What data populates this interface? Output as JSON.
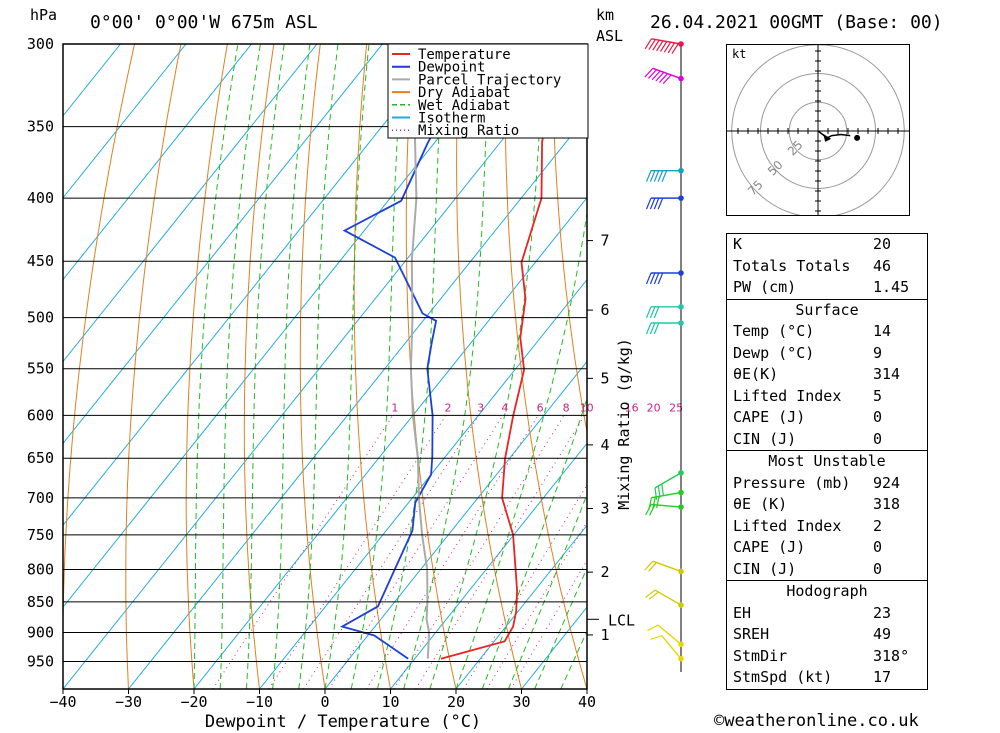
{
  "header": {
    "hpa_label": "hPa",
    "location": "0°00' 0°00'W 675m ASL",
    "km_label": "km",
    "asl_label": "ASL",
    "datetime": "26.04.2021 00GMT (Base: 00)"
  },
  "chart_data": {
    "type": "line",
    "title": "0°00' 0°00'W 675m ASL",
    "xlabel": "Dewpoint / Temperature (°C)",
    "ylabel": "hPa",
    "right_axis_label": "Mixing Ratio (g/kg)",
    "xlim": [
      -40,
      40
    ],
    "ylim": [
      300,
      1000
    ],
    "x_ticks": [
      -40,
      -30,
      -20,
      -10,
      0,
      10,
      20,
      30,
      40
    ],
    "pressure_levels": [
      300,
      350,
      400,
      450,
      500,
      550,
      600,
      650,
      700,
      750,
      800,
      850,
      900,
      950
    ],
    "km_ticks": [
      {
        "label": "1",
        "p": 904
      },
      {
        "label": "2",
        "p": 804
      },
      {
        "label": "3",
        "p": 714
      },
      {
        "label": "4",
        "p": 634
      },
      {
        "label": "5",
        "p": 560
      },
      {
        "label": "6",
        "p": 493
      },
      {
        "label": "7",
        "p": 433
      }
    ],
    "lcl": {
      "label": "LCL",
      "p": 878
    },
    "mixing_ratio_labels": [
      "1",
      "2",
      "3",
      "4",
      "6",
      "8",
      "10",
      "16",
      "20",
      "25"
    ],
    "mixing_ratio_values": [
      1,
      2,
      3,
      4,
      6,
      8,
      10,
      16,
      20,
      25
    ],
    "legend": {
      "position": "top-right",
      "items": [
        {
          "name": "Temperature",
          "color": "#ee2222",
          "style": "solid"
        },
        {
          "name": "Dewpoint",
          "color": "#1c3fd6",
          "style": "solid"
        },
        {
          "name": "Parcel Trajectory",
          "color": "#aaaaaa",
          "style": "solid"
        },
        {
          "name": "Dry Adiabat",
          "color": "#e08020",
          "style": "solid"
        },
        {
          "name": "Wet Adiabat",
          "color": "#22bb22",
          "style": "dashed"
        },
        {
          "name": "Isotherm",
          "color": "#22aadd",
          "style": "solid"
        },
        {
          "name": "Mixing Ratio",
          "color": "#cc2288",
          "style": "dotted"
        }
      ]
    },
    "series": [
      {
        "name": "Temperature",
        "points": [
          [
            14,
            945
          ],
          [
            21.6,
            915
          ],
          [
            21.1,
            890
          ],
          [
            19.7,
            865
          ],
          [
            17.3,
            832
          ],
          [
            9.9,
            750
          ],
          [
            3.7,
            700
          ],
          [
            -0.6,
            651
          ],
          [
            -4.6,
            601
          ],
          [
            -8.6,
            551
          ],
          [
            -13.1,
            519
          ],
          [
            -17,
            483
          ],
          [
            -22.1,
            451
          ],
          [
            -26.9,
            400
          ],
          [
            -33.7,
            360
          ],
          [
            -43,
            300
          ]
        ]
      },
      {
        "name": "Dewpoint",
        "points": [
          [
            9,
            945
          ],
          [
            1,
            905
          ],
          [
            -5,
            890
          ],
          [
            -2,
            857
          ],
          [
            -6,
            744
          ],
          [
            -9,
            706
          ],
          [
            -10,
            670
          ],
          [
            -12,
            648
          ],
          [
            -17,
            600
          ],
          [
            -23.5,
            550
          ],
          [
            -26,
            524
          ],
          [
            -28,
            503
          ],
          [
            -31,
            496
          ],
          [
            -42,
            447
          ],
          [
            -53,
            425
          ],
          [
            -48,
            402
          ],
          [
            -51,
            361
          ],
          [
            -55,
            300
          ]
        ]
      },
      {
        "name": "Parcel Trajectory",
        "points": [
          [
            12,
            945
          ],
          [
            9,
            900
          ],
          [
            7,
            878
          ],
          [
            5,
            850
          ],
          [
            1,
            800
          ],
          [
            -4,
            750
          ],
          [
            -9,
            700
          ],
          [
            -14,
            650
          ],
          [
            -20,
            600
          ],
          [
            -26,
            550
          ],
          [
            -32,
            500
          ],
          [
            -39,
            450
          ],
          [
            -46,
            400
          ],
          [
            -55,
            350
          ],
          [
            -65,
            300
          ]
        ]
      }
    ],
    "wind_barbs": [
      {
        "p": 300,
        "color": "#e8194a",
        "dir": 280,
        "kt": 80
      },
      {
        "p": 320,
        "color": "#dd00dd",
        "dir": 290,
        "kt": 60
      },
      {
        "p": 380,
        "color": "#16a0c0",
        "dir": 270,
        "kt": 45
      },
      {
        "p": 400,
        "color": "#1c3fd6",
        "dir": 270,
        "kt": 40
      },
      {
        "p": 460,
        "color": "#1c3fd6",
        "dir": 270,
        "kt": 35
      },
      {
        "p": 490,
        "color": "#22c5a8",
        "dir": 270,
        "kt": 30
      },
      {
        "p": 505,
        "color": "#22c5a8",
        "dir": 270,
        "kt": 25
      },
      {
        "p": 668,
        "color": "#22cc55",
        "dir": 240,
        "kt": 25
      },
      {
        "p": 693,
        "color": "#22cc22",
        "dir": 260,
        "kt": 25
      },
      {
        "p": 712,
        "color": "#22cc22",
        "dir": 275,
        "kt": 20
      },
      {
        "p": 803,
        "color": "#cccc00",
        "dir": 290,
        "kt": 15
      },
      {
        "p": 855,
        "color": "#cccc00",
        "dir": 300,
        "kt": 15
      },
      {
        "p": 920,
        "color": "#e8d800",
        "dir": 310,
        "kt": 10
      },
      {
        "p": 945,
        "color": "#e8d800",
        "dir": 320,
        "kt": 10
      }
    ],
    "hodograph": {
      "unit_label": "kt",
      "ring_labels": [
        "25",
        "50",
        "75"
      ],
      "ring_values": [
        25,
        50,
        75
      ],
      "points": [
        [
          0,
          0
        ],
        [
          8,
          -6
        ],
        [
          12,
          -4
        ],
        [
          20,
          -3
        ],
        [
          28,
          -4
        ]
      ],
      "storm_motion": [
        34,
        -6
      ]
    }
  },
  "indices": {
    "general": [
      {
        "label": "K",
        "value": "20"
      },
      {
        "label": "Totals Totals",
        "value": "46"
      },
      {
        "label": "PW (cm)",
        "value": "1.45"
      }
    ],
    "surface": {
      "title": "Surface",
      "rows": [
        {
          "label": "Temp (°C)",
          "value": "14"
        },
        {
          "label": "Dewp (°C)",
          "value": "9"
        },
        {
          "label": "θE(K)",
          "value": "314"
        },
        {
          "label": "Lifted Index",
          "value": "5"
        },
        {
          "label": "CAPE (J)",
          "value": "0"
        },
        {
          "label": "CIN (J)",
          "value": "0"
        }
      ]
    },
    "most_unstable": {
      "title": "Most Unstable",
      "rows": [
        {
          "label": "Pressure (mb)",
          "value": "924"
        },
        {
          "label": "θE (K)",
          "value": "318"
        },
        {
          "label": "Lifted Index",
          "value": "2"
        },
        {
          "label": "CAPE (J)",
          "value": "0"
        },
        {
          "label": "CIN (J)",
          "value": "0"
        }
      ]
    },
    "hodograph": {
      "title": "Hodograph",
      "rows": [
        {
          "label": "EH",
          "value": "23"
        },
        {
          "label": "SREH",
          "value": "49"
        },
        {
          "label": "StmDir",
          "value": "318°"
        },
        {
          "label": "StmSpd (kt)",
          "value": "17"
        }
      ]
    }
  },
  "footer": {
    "copyright": "©weatheronline.co.uk"
  }
}
